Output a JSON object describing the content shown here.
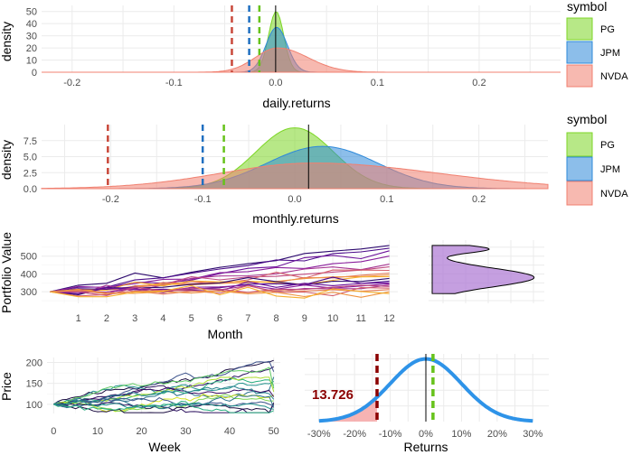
{
  "colors": {
    "PG": "#7cd625",
    "JPM": "#2e89d9",
    "NVDA": "#f08070",
    "text": "#4d4d4d",
    "var_label": "#8b0000"
  },
  "chart_data": [
    {
      "id": "daily",
      "type": "area",
      "xlabel": "daily.returns",
      "ylabel": "density",
      "xlim": [
        -0.23,
        0.28
      ],
      "ylim": [
        0,
        55
      ],
      "xticks": [
        -0.2,
        -0.1,
        0.0,
        0.1,
        0.2
      ],
      "xtick_labels": [
        "-0.2",
        "-0.1",
        "0.0",
        "0.1",
        "0.2"
      ],
      "yticks": [
        0,
        10,
        20,
        30,
        40,
        50
      ],
      "ytick_labels": [
        "0",
        "10",
        "20",
        "30",
        "40",
        "50"
      ],
      "legend": {
        "title": "symbol",
        "entries": [
          "PG",
          "JPM",
          "NVDA"
        ]
      },
      "series": [
        {
          "name": "PG",
          "mean": 0.0005,
          "sd": 0.0075,
          "peak": 50
        },
        {
          "name": "JPM",
          "mean": 0.001,
          "sd": 0.0105,
          "peak": 37
        },
        {
          "name": "NVDA",
          "mean": 0.002,
          "sd": 0.022,
          "peak": 20
        }
      ],
      "vlines": [
        {
          "name": "NVDA",
          "x": -0.043,
          "dashed": true
        },
        {
          "name": "JPM",
          "x": -0.026,
          "dashed": true
        },
        {
          "name": "PG",
          "x": -0.016,
          "dashed": true
        },
        {
          "name": "mean",
          "x": 0.0,
          "dashed": false
        }
      ]
    },
    {
      "id": "monthly",
      "type": "area",
      "xlabel": "monthly.returns",
      "ylabel": "density",
      "xlim": [
        -0.275,
        0.275
      ],
      "ylim": [
        0,
        10
      ],
      "xticks": [
        -0.2,
        -0.1,
        0.0,
        0.1,
        0.2
      ],
      "xtick_labels": [
        "-0.2",
        "-0.1",
        "0.0",
        "0.1",
        "0.2"
      ],
      "yticks": [
        0,
        2.5,
        5,
        7.5
      ],
      "ytick_labels": [
        "0.0",
        "2.5",
        "5.0",
        "7.5"
      ],
      "legend": {
        "title": "symbol",
        "entries": [
          "PG",
          "JPM",
          "NVDA"
        ]
      },
      "series": [
        {
          "name": "PG",
          "mean": 0.0,
          "sd": 0.042,
          "peak": 9.5
        },
        {
          "name": "JPM",
          "mean": 0.03,
          "sd": 0.06,
          "peak": 6.6
        },
        {
          "name": "NVDA",
          "mean": 0.02,
          "sd": 0.1,
          "peak": 4.0
        }
      ],
      "vlines": [
        {
          "name": "NVDA",
          "x": -0.203,
          "dashed": true
        },
        {
          "name": "JPM",
          "x": -0.1,
          "dashed": true
        },
        {
          "name": "PG",
          "x": -0.077,
          "dashed": true
        },
        {
          "name": "mean",
          "x": 0.015,
          "dashed": false
        }
      ]
    },
    {
      "id": "portfolio",
      "type": "line",
      "xlabel": "Month",
      "ylabel": "Portfolio Value",
      "xlim": [
        -0.3,
        12.3
      ],
      "ylim": [
        235,
        590
      ],
      "xticks": [
        1,
        2,
        3,
        4,
        5,
        6,
        7,
        8,
        9,
        10,
        11,
        12
      ],
      "xtick_labels": [
        "1",
        "2",
        "3",
        "4",
        "5",
        "6",
        "7",
        "8",
        "9",
        "10",
        "11",
        "12"
      ],
      "yticks": [
        300,
        400,
        500
      ],
      "ytick_labels": [
        "300",
        "400",
        "500"
      ],
      "start_value": 300,
      "final_values": [
        560,
        545,
        530,
        500,
        455,
        440,
        420,
        405,
        395,
        385,
        375,
        360,
        350,
        345,
        338,
        330,
        320,
        312,
        300,
        290
      ],
      "side_density": {
        "mode": 380,
        "sd": 52,
        "secondary_mode": 540,
        "secondary_sd": 22,
        "secondary_weight": 0.55
      }
    },
    {
      "id": "price",
      "type": "line",
      "xlabel": "Week",
      "ylabel": "Price",
      "xlim": [
        -1.5,
        51.5
      ],
      "ylim": [
        78,
        212
      ],
      "xticks": [
        0,
        10,
        20,
        30,
        40,
        50
      ],
      "xtick_labels": [
        "0",
        "10",
        "20",
        "30",
        "40",
        "50"
      ],
      "yticks": [
        100,
        150,
        200
      ],
      "ytick_labels": [
        "100",
        "150",
        "200"
      ],
      "start_value": 100,
      "final_values": [
        205,
        190,
        178,
        165,
        155,
        145,
        138,
        130,
        122,
        118,
        112,
        108,
        104,
        100,
        96,
        92,
        88,
        85
      ]
    },
    {
      "id": "returns",
      "type": "line",
      "xlabel": "Returns",
      "ylabel": "",
      "xlim": [
        -0.34,
        0.345
      ],
      "ylim": [
        0,
        1.08
      ],
      "xticks": [
        -0.3,
        -0.2,
        -0.1,
        0.0,
        0.1,
        0.2,
        0.3
      ],
      "xtick_labels": [
        "-30%",
        "-20%",
        "-10%",
        "0%",
        "10%",
        "20%",
        "30%"
      ],
      "mean": 0.0,
      "sd": 0.1,
      "var_cutoff": -0.137,
      "mean_line": 0.0,
      "expected_line": 0.02,
      "annotation": "13.726"
    }
  ]
}
